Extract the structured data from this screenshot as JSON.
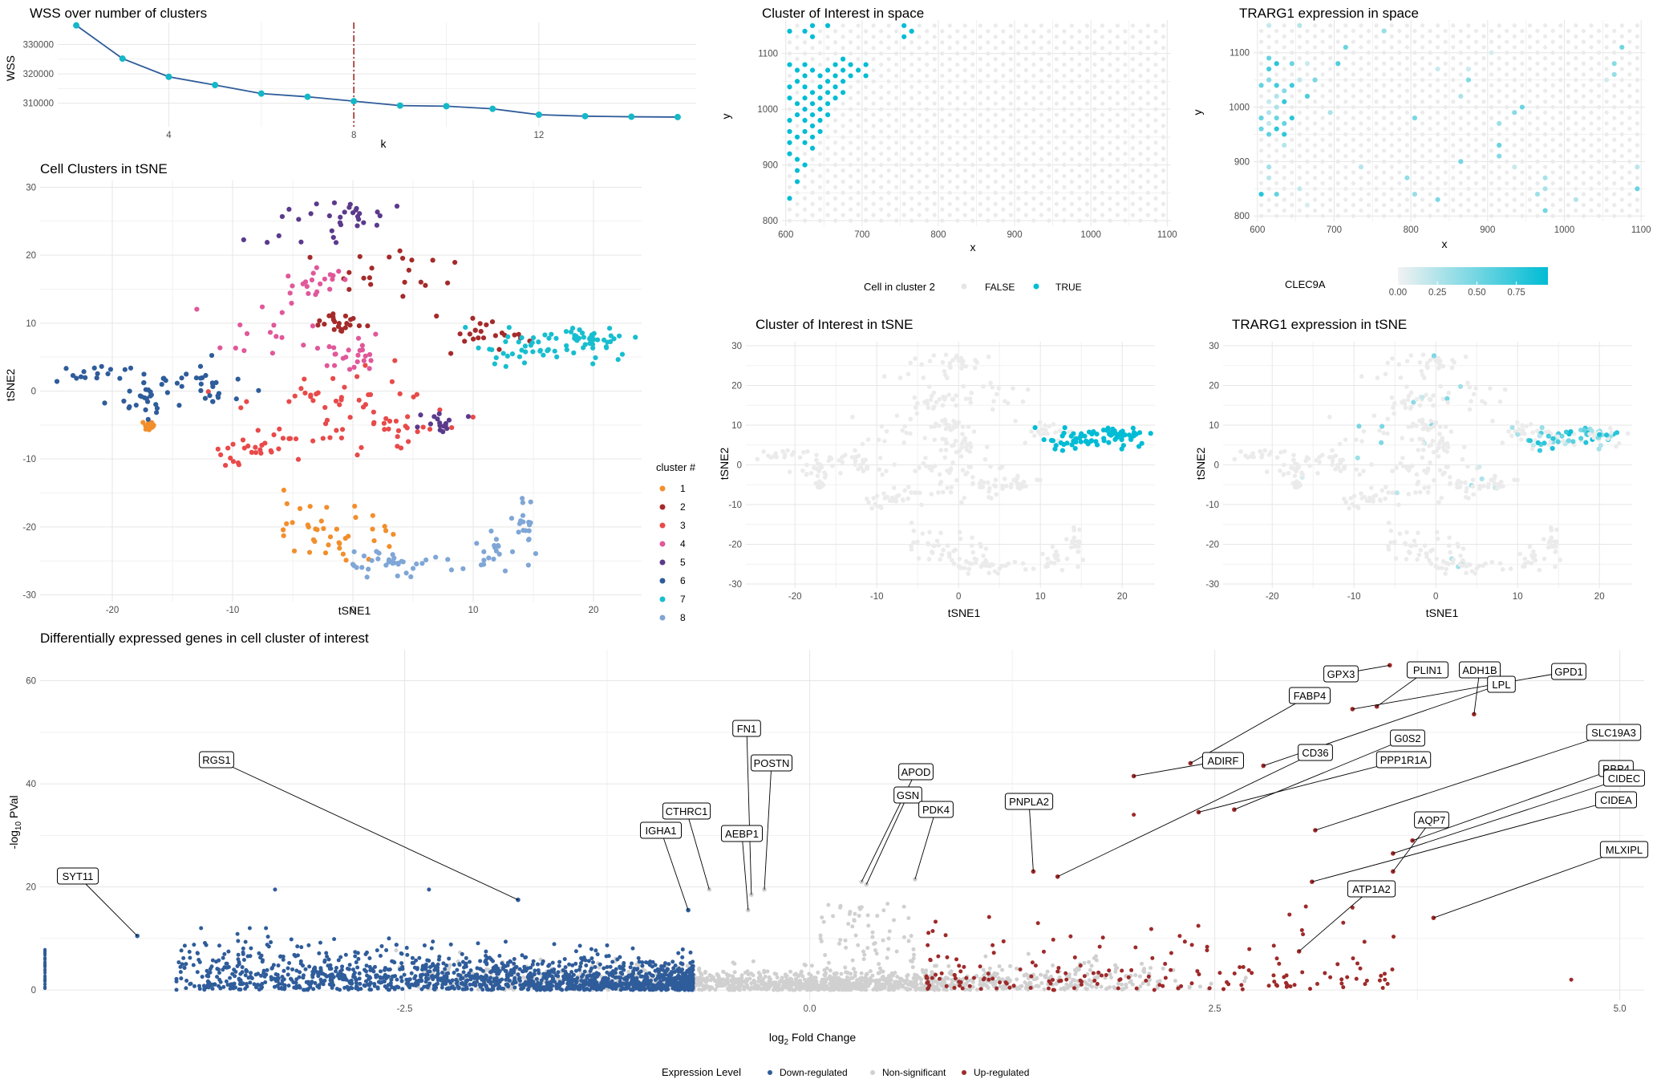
{
  "colors": {
    "teal": "#00BCD4",
    "grey_point": "#D3D3D3",
    "down": "#2F5C9A",
    "up": "#9E2A2A",
    "nonsig": "#D0D0D0",
    "elbow_line": "#2F5C9A",
    "elbow_point": "#14B8C8",
    "elbow_vline": "#9E2A2A",
    "cluster_palette": [
      "#F28E2B",
      "#A52A2A",
      "#E84A4A",
      "#E0589A",
      "#5B3A8C",
      "#2F5C9A",
      "#17BECF",
      "#7FA6D6"
    ]
  },
  "chart_data": [
    {
      "id": "wss",
      "type": "line",
      "title": "WSS over number of clusters",
      "xlabel": "k",
      "ylabel": "WSS",
      "x": [
        2,
        3,
        4,
        5,
        6,
        7,
        8,
        9,
        10,
        11,
        12,
        13,
        14,
        15
      ],
      "values": [
        336500,
        325200,
        319000,
        316200,
        313300,
        312200,
        310700,
        309200,
        309000,
        308100,
        306100,
        305600,
        305400,
        305300
      ],
      "xlim": [
        1.6,
        15.4
      ],
      "ylim": [
        302000,
        337500
      ],
      "xticks": [
        4,
        8,
        12
      ],
      "yticks": [
        310000,
        320000,
        330000
      ],
      "ytick_labels": [
        "310000",
        "320000",
        "330000"
      ],
      "vline_x": 8,
      "grid": true
    },
    {
      "id": "tsne_clusters",
      "type": "scatter",
      "title": "Cell Clusters in tSNE",
      "xlabel": "tSNE1",
      "ylabel": "tSNE2",
      "xlim": [
        -26,
        24
      ],
      "ylim": [
        -31,
        31
      ],
      "xticks": [
        -20,
        -10,
        0,
        10,
        20
      ],
      "yticks": [
        -30,
        -20,
        -10,
        0,
        10,
        20,
        30
      ],
      "legend_title": "cluster #",
      "legend_position": "right",
      "legend_labels": [
        "1",
        "2",
        "3",
        "4",
        "5",
        "6",
        "7",
        "8"
      ],
      "clusters": [
        {
          "name": "1",
          "n": 60,
          "points": [
            [
              -4,
              -19,
              3,
              2.2
            ],
            [
              -1,
              -22,
              3,
              1.4
            ],
            [
              -17,
              -5,
              0.3,
              0.3
            ]
          ]
        },
        {
          "name": "2",
          "n": 65,
          "points": [
            [
              3.5,
              16.5,
              3,
              3.5
            ],
            [
              11,
              8,
              1.5,
              1.4
            ],
            [
              -1,
              10,
              1,
              0.8
            ]
          ]
        },
        {
          "name": "3",
          "n": 95,
          "points": [
            [
              -5,
              -3,
              3.5,
              3.4
            ],
            [
              2,
              0,
              3,
              3.2
            ],
            [
              3,
              -6,
              2,
              2
            ],
            [
              -8,
              -9,
              1.5,
              1.2
            ]
          ]
        },
        {
          "name": "4",
          "n": 60,
          "points": [
            [
              -5,
              9,
              3.5,
              2.8
            ],
            [
              -3,
              16,
              1.5,
              1.2
            ],
            [
              0,
              5,
              1.2,
              1.2
            ]
          ]
        },
        {
          "name": "5",
          "n": 48,
          "points": [
            [
              -2.5,
              24,
              2.5,
              2
            ],
            [
              0.5,
              26,
              1.5,
              1.3
            ],
            [
              7.5,
              -5,
              1,
              0.9
            ]
          ]
        },
        {
          "name": "6",
          "n": 70,
          "points": [
            [
              -21,
              2.5,
              2.5,
              0.9
            ],
            [
              -15,
              1.5,
              2.5,
              1.5
            ],
            [
              -11.5,
              0,
              1.2,
              1.8
            ],
            [
              -17,
              -2,
              1.5,
              1.4
            ]
          ]
        },
        {
          "name": "7",
          "n": 80,
          "points": [
            [
              20,
              7.5,
              1.5,
              1.4
            ],
            [
              14.5,
              6.5,
              2.2,
              1.6
            ]
          ]
        },
        {
          "name": "8",
          "n": 70,
          "points": [
            [
              6,
              -26,
              4.5,
              1
            ],
            [
              12,
              -24,
              1.5,
              1.6
            ],
            [
              14.2,
              -19,
              0.4,
              1.3
            ],
            [
              2,
              -25,
              1.5,
              1
            ]
          ]
        }
      ]
    },
    {
      "id": "coi_space",
      "type": "scatter",
      "title": "Cluster of Interest in space",
      "xlabel": "x",
      "ylabel": "y",
      "xlim": [
        595,
        1105
      ],
      "ylim": [
        790,
        1160
      ],
      "xticks": [
        600,
        700,
        800,
        900,
        1000,
        1100
      ],
      "yticks": [
        800,
        900,
        1000,
        1100
      ],
      "legend_title": "Cell in cluster 2",
      "legend_labels": [
        "FALSE",
        "TRUE"
      ],
      "legend_position": "bottom"
    },
    {
      "id": "trarg1_space",
      "type": "scatter",
      "title": "TRARG1 expression in space",
      "xlabel": "x",
      "ylabel": "y",
      "xlim": [
        595,
        1105
      ],
      "ylim": [
        790,
        1160
      ],
      "xticks": [
        600,
        700,
        800,
        900,
        1000,
        1100
      ],
      "yticks": [
        800,
        900,
        1000,
        1100
      ],
      "colorbar_title": "CLEC9A",
      "colorbar_ticks": [
        0,
        0.25,
        0.5,
        0.75
      ],
      "colorbar_tick_labels": [
        "0.00",
        "0.25",
        "0.50",
        "0.75"
      ],
      "colorbar_range": [
        0,
        0.95
      ],
      "legend_position": "bottom"
    },
    {
      "id": "coi_tsne",
      "type": "scatter",
      "title": "Cluster of Interest in tSNE",
      "xlabel": "tSNE1",
      "ylabel": "tSNE2",
      "xlim": [
        -26,
        24
      ],
      "ylim": [
        -31,
        31
      ],
      "xticks": [
        -20,
        -10,
        0,
        10,
        20
      ],
      "yticks": [
        -30,
        -20,
        -10,
        0,
        10,
        20,
        30
      ]
    },
    {
      "id": "trarg1_tsne",
      "type": "scatter",
      "title": "TRARG1 expression in tSNE",
      "xlabel": "tSNE1",
      "ylabel": "tSNE2",
      "xlim": [
        -26,
        24
      ],
      "ylim": [
        -31,
        31
      ],
      "xticks": [
        -20,
        -10,
        0,
        10,
        20
      ],
      "yticks": [
        -30,
        -20,
        -10,
        0,
        10,
        20,
        30
      ]
    },
    {
      "id": "volcano",
      "type": "scatter",
      "title": "Differentially expressed genes in cell cluster of interest",
      "xlabel": "log2 Fold Change",
      "ylabel": "-log10 PVal",
      "xlim": [
        -4.75,
        5.15
      ],
      "ylim": [
        -2,
        66
      ],
      "xticks": [
        -2.5,
        0,
        2.5,
        5
      ],
      "xtick_labels": [
        "-2.5",
        "0.0",
        "2.5",
        "5.0"
      ],
      "yticks": [
        0,
        20,
        40,
        60
      ],
      "legend_title": "Expression Level",
      "legend_labels": [
        "Down-regulated",
        "Non-significant",
        "Up-regulated"
      ],
      "legend_position": "bottom",
      "genes": [
        {
          "gene": "GPX3",
          "x": 3.58,
          "y": 63.0
        },
        {
          "gene": "PLIN1",
          "x": 3.5,
          "y": 55.0
        },
        {
          "gene": "ADH1B",
          "x": 4.1,
          "y": 53.5
        },
        {
          "gene": "GPD1",
          "x": 3.35,
          "y": 54.5
        },
        {
          "gene": "LPL",
          "x": 2.8,
          "y": 43.5
        },
        {
          "gene": "FABP4",
          "x": 2.35,
          "y": 44.0
        },
        {
          "gene": "G0S2",
          "x": 2.62,
          "y": 35.0
        },
        {
          "gene": "PPP1R1A",
          "x": 2.4,
          "y": 34.5
        },
        {
          "gene": "SLC19A3",
          "x": 3.12,
          "y": 31.0
        },
        {
          "gene": "RBP4",
          "x": 3.72,
          "y": 29.0
        },
        {
          "gene": "CIDEC",
          "x": 3.6,
          "y": 26.5
        },
        {
          "gene": "AQP7",
          "x": 3.6,
          "y": 23.0
        },
        {
          "gene": "CIDEA",
          "x": 3.1,
          "y": 21.0
        },
        {
          "gene": "MLXIPL",
          "x": 3.85,
          "y": 14.0
        },
        {
          "gene": "ATP1A2",
          "x": 3.02,
          "y": 7.5
        },
        {
          "gene": "ADIRF",
          "x": 2.0,
          "y": 41.5
        },
        {
          "gene": "CD36",
          "x": 1.53,
          "y": 22.0
        },
        {
          "gene": "PNPLA2",
          "x": 1.38,
          "y": 23.0
        },
        {
          "gene": "APOD",
          "x": 0.32,
          "y": 21.0
        },
        {
          "gene": "GSN",
          "x": 0.35,
          "y": 20.5
        },
        {
          "gene": "PDK4",
          "x": 0.65,
          "y": 21.5
        },
        {
          "gene": "FN1",
          "x": -0.36,
          "y": 18.5
        },
        {
          "gene": "POSTN",
          "x": -0.28,
          "y": 19.5
        },
        {
          "gene": "AEBP1",
          "x": -0.38,
          "y": 15.5
        },
        {
          "gene": "CTHRC1",
          "x": -0.62,
          "y": 19.5
        },
        {
          "gene": "IGHA1",
          "x": -0.75,
          "y": 15.5
        },
        {
          "gene": "RGS1",
          "x": -1.8,
          "y": 17.5
        },
        {
          "gene": "SYT11",
          "x": -4.15,
          "y": 10.5
        }
      ]
    }
  ]
}
